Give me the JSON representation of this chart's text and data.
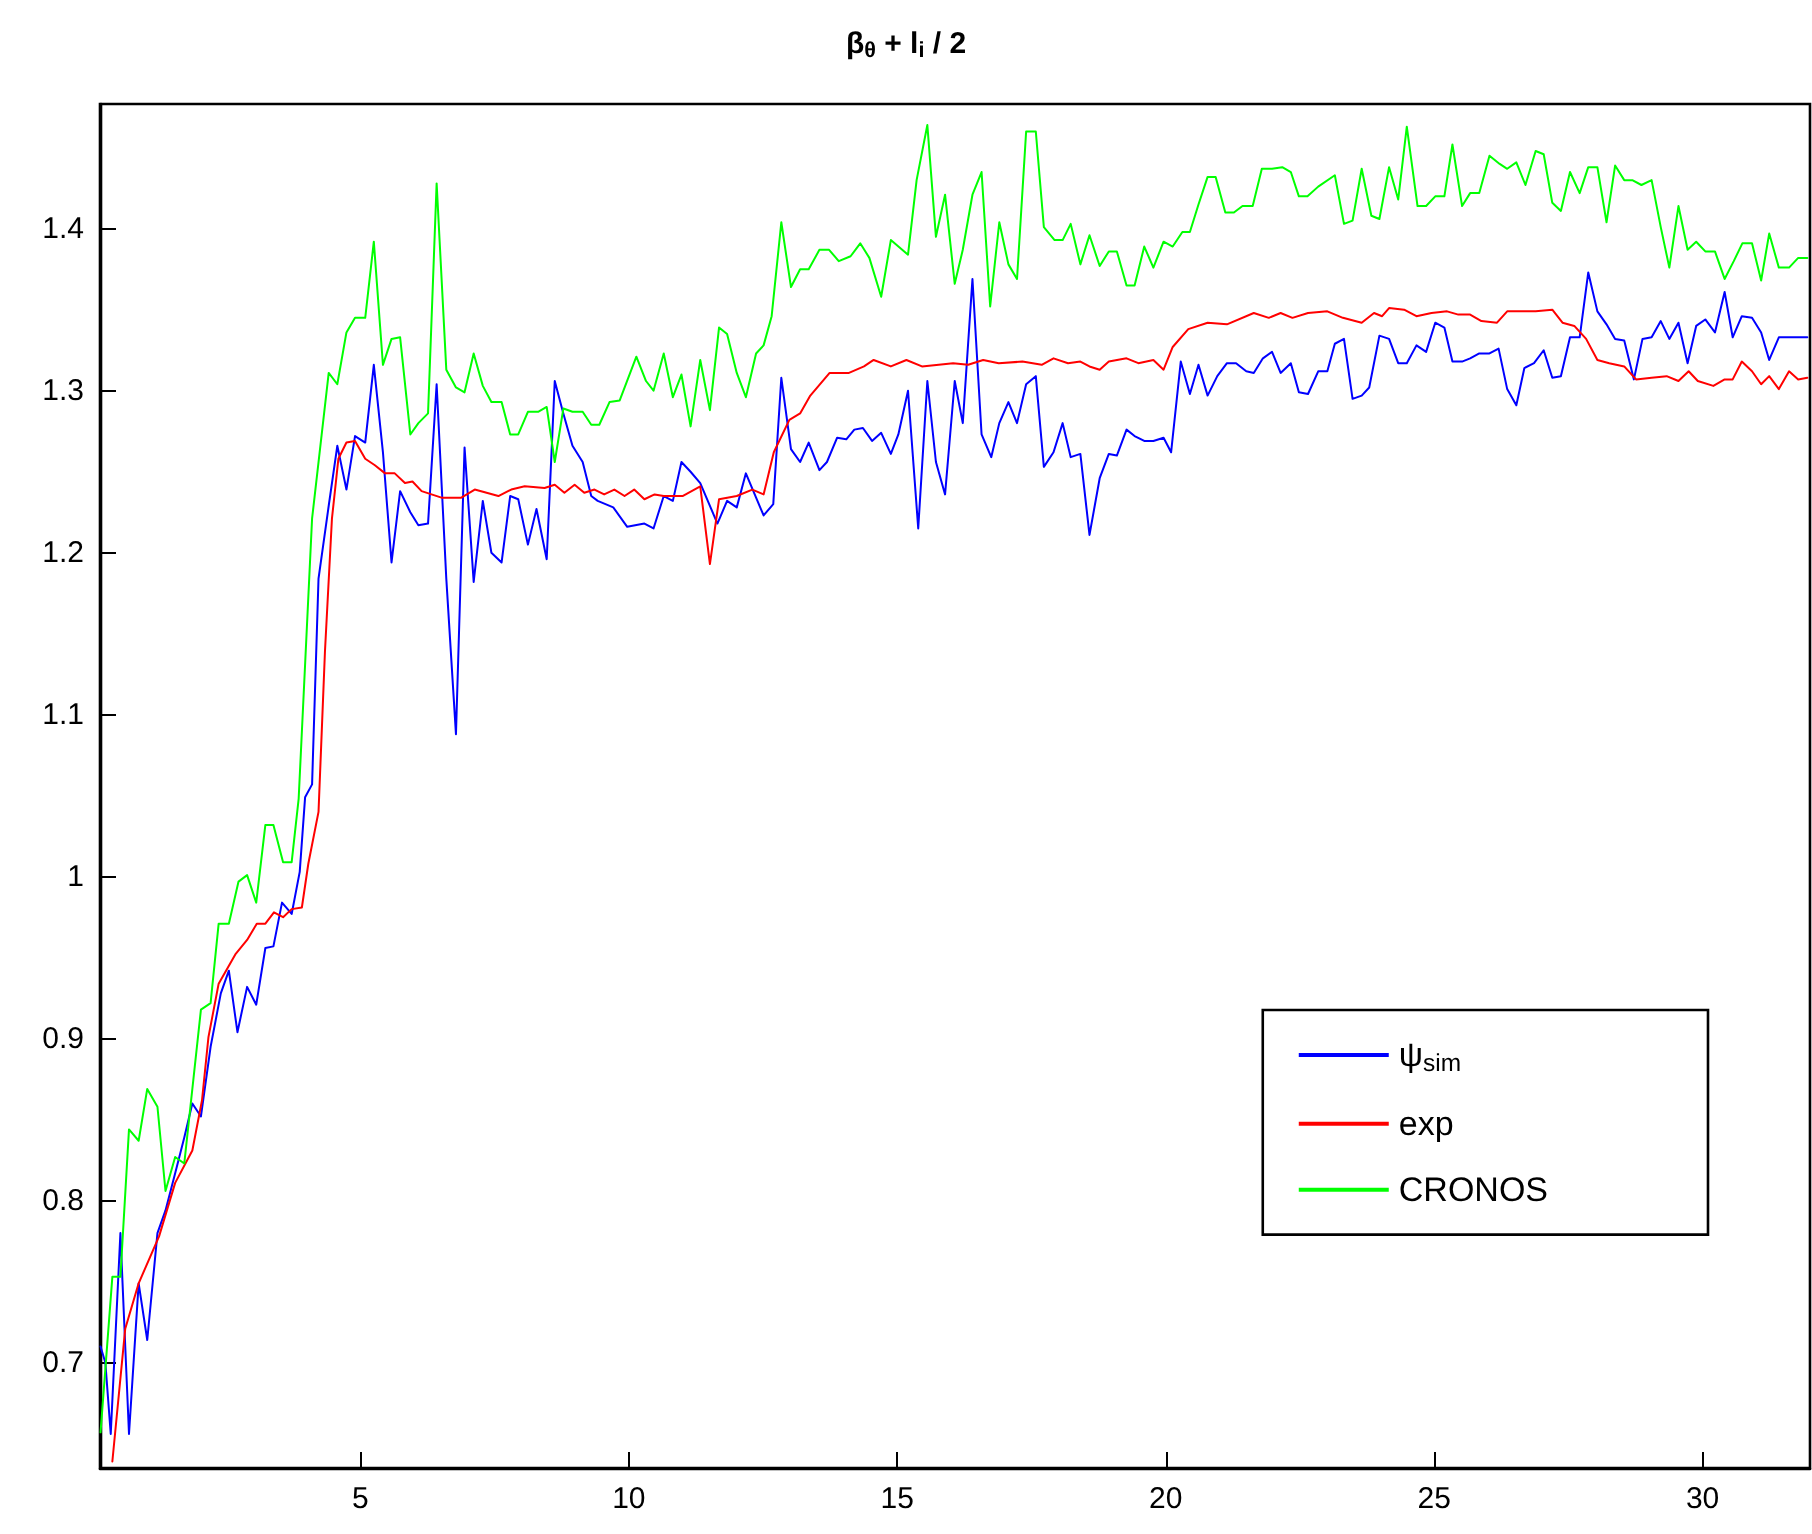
{
  "chart_data": {
    "type": "line",
    "title": "β$_{θ}$ + l$_{i}$ / 2",
    "xlim": [
      0.15,
      32
    ],
    "xticks": [
      5,
      10,
      15,
      20,
      25,
      30
    ],
    "ylim": [
      0.635,
      1.477
    ],
    "yticks": [
      0.7,
      0.8,
      0.9,
      1,
      1.1,
      1.2,
      1.3,
      1.4
    ],
    "grid": false,
    "legend": "right",
    "marker": "none",
    "line_style": "solid",
    "series": [
      {
        "name": "ψ$_{sim}$",
        "color": "#0000ff",
        "x": [
          0.16,
          0.25,
          0.35,
          0.53,
          0.69,
          0.87,
          1.03,
          1.22,
          1.37,
          1.55,
          1.72,
          1.87,
          2.03,
          2.21,
          2.4,
          2.55,
          2.71,
          2.89,
          3.06,
          3.23,
          3.38,
          3.54,
          3.72,
          3.87,
          3.97,
          4.1,
          4.22,
          4.41,
          4.57,
          4.74,
          4.9,
          5.09,
          5.25,
          5.42,
          5.58,
          5.74,
          5.93,
          6.08,
          6.26,
          6.42,
          6.6,
          6.78,
          6.94,
          7.11,
          7.28,
          7.44,
          7.63,
          7.79,
          7.94,
          8.12,
          8.28,
          8.47,
          8.62,
          8.78,
          8.95,
          9.14,
          9.3,
          9.42,
          9.71,
          9.97,
          10.29,
          10.46,
          10.65,
          10.82,
          10.98,
          11.15,
          11.33,
          11.65,
          11.83,
          12.01,
          12.18,
          12.51,
          12.69,
          12.84,
          13.02,
          13.19,
          13.35,
          13.55,
          13.69,
          13.88,
          14.05,
          14.2,
          14.36,
          14.53,
          14.7,
          14.88,
          15.02,
          15.2,
          15.39,
          15.56,
          15.72,
          15.89,
          16.07,
          16.22,
          16.4,
          16.57,
          16.75,
          16.9,
          17.07,
          17.23,
          17.4,
          17.58,
          17.73,
          17.91,
          18.08,
          18.23,
          18.41,
          18.58,
          18.77,
          18.94,
          19.09,
          19.27,
          19.42,
          19.6,
          19.77,
          19.96,
          20.1,
          20.28,
          20.45,
          20.61,
          20.78,
          20.96,
          21.14,
          21.31,
          21.5,
          21.64,
          21.81,
          21.98,
          22.14,
          22.33,
          22.48,
          22.65,
          22.84,
          23.01,
          23.15,
          23.32,
          23.48,
          23.65,
          23.79,
          23.98,
          24.16,
          24.33,
          24.49,
          24.67,
          24.85,
          25.02,
          25.19,
          25.34,
          25.52,
          25.67,
          25.84,
          26.03,
          26.2,
          26.36,
          26.53,
          26.68,
          26.86,
          27.04,
          27.2,
          27.36,
          27.53,
          27.71,
          27.87,
          28.04,
          28.21,
          28.37,
          28.54,
          28.72,
          28.88,
          29.05,
          29.22,
          29.38,
          29.55,
          29.72,
          29.88,
          30.05,
          30.23,
          30.41,
          30.56,
          30.73,
          30.92,
          31.09,
          31.24,
          31.42,
          31.95
        ],
        "values": [
          0.71,
          0.7,
          0.656,
          0.78,
          0.656,
          0.749,
          0.714,
          0.78,
          0.794,
          0.817,
          0.839,
          0.86,
          0.852,
          0.895,
          0.928,
          0.942,
          0.904,
          0.932,
          0.921,
          0.956,
          0.957,
          0.984,
          0.977,
          1.003,
          1.049,
          1.057,
          1.184,
          1.229,
          1.266,
          1.239,
          1.272,
          1.268,
          1.316,
          1.262,
          1.194,
          1.238,
          1.225,
          1.217,
          1.218,
          1.304,
          1.184,
          1.088,
          1.265,
          1.182,
          1.232,
          1.2,
          1.194,
          1.235,
          1.233,
          1.205,
          1.227,
          1.196,
          1.306,
          1.286,
          1.266,
          1.256,
          1.235,
          1.232,
          1.228,
          1.216,
          1.218,
          1.215,
          1.235,
          1.232,
          1.256,
          1.25,
          1.243,
          1.218,
          1.232,
          1.228,
          1.249,
          1.223,
          1.23,
          1.308,
          1.264,
          1.256,
          1.268,
          1.251,
          1.256,
          1.271,
          1.27,
          1.276,
          1.277,
          1.269,
          1.274,
          1.261,
          1.273,
          1.3,
          1.215,
          1.306,
          1.256,
          1.236,
          1.306,
          1.28,
          1.369,
          1.273,
          1.259,
          1.28,
          1.293,
          1.28,
          1.304,
          1.309,
          1.253,
          1.262,
          1.28,
          1.259,
          1.261,
          1.211,
          1.246,
          1.261,
          1.26,
          1.276,
          1.272,
          1.269,
          1.269,
          1.271,
          1.262,
          1.318,
          1.298,
          1.316,
          1.297,
          1.309,
          1.317,
          1.317,
          1.312,
          1.311,
          1.32,
          1.324,
          1.311,
          1.317,
          1.299,
          1.298,
          1.312,
          1.312,
          1.329,
          1.332,
          1.295,
          1.297,
          1.302,
          1.334,
          1.332,
          1.317,
          1.317,
          1.328,
          1.324,
          1.342,
          1.339,
          1.318,
          1.318,
          1.32,
          1.323,
          1.323,
          1.326,
          1.301,
          1.291,
          1.314,
          1.317,
          1.325,
          1.308,
          1.309,
          1.333,
          1.333,
          1.373,
          1.349,
          1.341,
          1.332,
          1.331,
          1.307,
          1.332,
          1.333,
          1.343,
          1.332,
          1.342,
          1.317,
          1.34,
          1.344,
          1.336,
          1.361,
          1.333,
          1.346,
          1.345,
          1.336,
          1.319,
          1.333,
          1.333
        ]
      },
      {
        "name": "exp",
        "color": "#ff0000",
        "x": [
          0.38,
          0.62,
          0.87,
          1.25,
          1.55,
          1.87,
          2.05,
          2.17,
          2.36,
          2.67,
          2.89,
          3.07,
          3.23,
          3.39,
          3.56,
          3.72,
          3.91,
          4.03,
          4.22,
          4.34,
          4.47,
          4.59,
          4.74,
          4.9,
          5.09,
          5.27,
          5.46,
          5.64,
          5.83,
          5.97,
          6.14,
          6.51,
          6.88,
          7.13,
          7.57,
          7.81,
          8.06,
          8.43,
          8.62,
          8.8,
          8.99,
          9.17,
          9.36,
          9.54,
          9.73,
          9.92,
          10.1,
          10.29,
          10.48,
          10.65,
          11,
          11.33,
          11.51,
          11.68,
          12.01,
          12.3,
          12.51,
          12.7,
          12.99,
          13.19,
          13.38,
          13.74,
          14.1,
          14.38,
          14.56,
          14.88,
          15.17,
          15.46,
          16.04,
          16.32,
          16.6,
          16.89,
          17.33,
          17.69,
          17.91,
          18.18,
          18.41,
          18.58,
          18.77,
          18.94,
          19.27,
          19.49,
          19.77,
          19.96,
          20.13,
          20.42,
          20.78,
          21.14,
          21.64,
          21.92,
          22.14,
          22.36,
          22.65,
          23.01,
          23.3,
          23.65,
          23.88,
          24.03,
          24.16,
          24.44,
          24.67,
          24.95,
          25.24,
          25.45,
          25.67,
          25.88,
          26.17,
          26.36,
          26.68,
          26.89,
          27.2,
          27.39,
          27.61,
          27.83,
          28.04,
          28.26,
          28.54,
          28.76,
          29.05,
          29.33,
          29.55,
          29.74,
          29.91,
          30.2,
          30.41,
          30.56,
          30.73,
          30.92,
          31.09,
          31.24,
          31.42,
          31.61,
          31.78,
          31.95
        ],
        "values": [
          0.639,
          0.721,
          0.749,
          0.778,
          0.811,
          0.831,
          0.862,
          0.901,
          0.934,
          0.952,
          0.961,
          0.971,
          0.971,
          0.978,
          0.975,
          0.98,
          0.981,
          1.008,
          1.04,
          1.139,
          1.221,
          1.258,
          1.268,
          1.269,
          1.258,
          1.254,
          1.249,
          1.249,
          1.243,
          1.244,
          1.238,
          1.234,
          1.234,
          1.239,
          1.235,
          1.239,
          1.241,
          1.24,
          1.242,
          1.237,
          1.242,
          1.237,
          1.239,
          1.236,
          1.239,
          1.235,
          1.239,
          1.233,
          1.236,
          1.235,
          1.235,
          1.241,
          1.193,
          1.233,
          1.235,
          1.239,
          1.236,
          1.262,
          1.282,
          1.286,
          1.297,
          1.311,
          1.311,
          1.315,
          1.319,
          1.315,
          1.319,
          1.315,
          1.317,
          1.316,
          1.319,
          1.317,
          1.318,
          1.316,
          1.32,
          1.317,
          1.318,
          1.315,
          1.313,
          1.318,
          1.32,
          1.317,
          1.319,
          1.313,
          1.327,
          1.338,
          1.342,
          1.341,
          1.348,
          1.345,
          1.348,
          1.345,
          1.348,
          1.349,
          1.345,
          1.342,
          1.348,
          1.346,
          1.351,
          1.35,
          1.346,
          1.348,
          1.349,
          1.347,
          1.347,
          1.343,
          1.342,
          1.349,
          1.349,
          1.349,
          1.35,
          1.342,
          1.34,
          1.332,
          1.319,
          1.317,
          1.315,
          1.307,
          1.308,
          1.309,
          1.306,
          1.312,
          1.306,
          1.303,
          1.307,
          1.307,
          1.318,
          1.312,
          1.304,
          1.309,
          1.301,
          1.312,
          1.307,
          1.308
        ]
      },
      {
        "name": "CRONOS",
        "color": "#00ff00",
        "x": [
          0.16,
          0.38,
          0.53,
          0.69,
          0.87,
          1.03,
          1.22,
          1.37,
          1.55,
          1.72,
          2.03,
          2.21,
          2.36,
          2.55,
          2.73,
          2.89,
          3.06,
          3.23,
          3.38,
          3.56,
          3.72,
          3.85,
          4.1,
          4.41,
          4.57,
          4.74,
          4.9,
          5.09,
          5.25,
          5.42,
          5.58,
          5.74,
          5.93,
          6.08,
          6.26,
          6.42,
          6.6,
          6.78,
          6.94,
          7.11,
          7.28,
          7.44,
          7.63,
          7.79,
          7.94,
          8.12,
          8.31,
          8.47,
          8.62,
          8.78,
          8.95,
          9.14,
          9.3,
          9.45,
          9.64,
          9.83,
          10.14,
          10.32,
          10.46,
          10.65,
          10.82,
          10.98,
          11.15,
          11.33,
          11.51,
          11.68,
          11.83,
          12.01,
          12.18,
          12.37,
          12.51,
          12.66,
          12.84,
          13.02,
          13.19,
          13.35,
          13.55,
          13.73,
          13.91,
          14.13,
          14.31,
          14.48,
          14.7,
          14.88,
          15.2,
          15.36,
          15.56,
          15.72,
          15.89,
          16.07,
          16.22,
          16.4,
          16.57,
          16.73,
          16.9,
          17.07,
          17.23,
          17.4,
          17.58,
          17.73,
          17.93,
          18.08,
          18.23,
          18.41,
          18.58,
          18.77,
          18.94,
          19.09,
          19.27,
          19.42,
          19.6,
          19.77,
          19.96,
          20.13,
          20.31,
          20.45,
          20.61,
          20.78,
          20.93,
          21.11,
          21.27,
          21.43,
          21.62,
          21.79,
          21.98,
          22.17,
          22.33,
          22.48,
          22.64,
          22.84,
          23.15,
          23.32,
          23.48,
          23.65,
          23.83,
          23.98,
          24.16,
          24.33,
          24.49,
          24.69,
          24.85,
          25.02,
          25.19,
          25.34,
          25.52,
          25.67,
          25.84,
          26.03,
          26.22,
          26.36,
          26.53,
          26.7,
          26.89,
          27.04,
          27.2,
          27.36,
          27.53,
          27.71,
          27.87,
          28.04,
          28.21,
          28.37,
          28.54,
          28.69,
          28.86,
          29.05,
          29.22,
          29.38,
          29.55,
          29.72,
          29.88,
          30.05,
          30.23,
          30.41,
          30.58,
          30.74,
          30.92,
          31.09,
          31.24,
          31.42,
          31.61,
          31.78,
          31.95
        ],
        "values": [
          0.657,
          0.753,
          0.753,
          0.844,
          0.837,
          0.869,
          0.858,
          0.806,
          0.827,
          0.823,
          0.918,
          0.922,
          0.971,
          0.971,
          0.997,
          1.001,
          0.984,
          1.032,
          1.032,
          1.009,
          1.009,
          1.048,
          1.221,
          1.311,
          1.304,
          1.336,
          1.345,
          1.345,
          1.392,
          1.316,
          1.332,
          1.333,
          1.273,
          1.28,
          1.286,
          1.428,
          1.313,
          1.302,
          1.299,
          1.323,
          1.303,
          1.293,
          1.293,
          1.273,
          1.273,
          1.287,
          1.287,
          1.29,
          1.256,
          1.289,
          1.287,
          1.287,
          1.279,
          1.279,
          1.293,
          1.294,
          1.321,
          1.306,
          1.3,
          1.323,
          1.296,
          1.31,
          1.278,
          1.319,
          1.288,
          1.339,
          1.335,
          1.311,
          1.296,
          1.323,
          1.328,
          1.346,
          1.404,
          1.364,
          1.375,
          1.375,
          1.387,
          1.387,
          1.38,
          1.383,
          1.391,
          1.382,
          1.358,
          1.393,
          1.384,
          1.43,
          1.464,
          1.395,
          1.421,
          1.366,
          1.387,
          1.421,
          1.435,
          1.352,
          1.404,
          1.378,
          1.369,
          1.46,
          1.46,
          1.401,
          1.393,
          1.393,
          1.403,
          1.378,
          1.396,
          1.377,
          1.386,
          1.386,
          1.365,
          1.365,
          1.389,
          1.376,
          1.392,
          1.389,
          1.398,
          1.398,
          1.415,
          1.432,
          1.432,
          1.41,
          1.41,
          1.414,
          1.414,
          1.437,
          1.437,
          1.438,
          1.435,
          1.42,
          1.42,
          1.426,
          1.433,
          1.403,
          1.405,
          1.437,
          1.408,
          1.406,
          1.438,
          1.418,
          1.463,
          1.414,
          1.414,
          1.42,
          1.42,
          1.452,
          1.414,
          1.422,
          1.422,
          1.445,
          1.44,
          1.437,
          1.441,
          1.427,
          1.448,
          1.446,
          1.416,
          1.411,
          1.435,
          1.422,
          1.438,
          1.438,
          1.404,
          1.439,
          1.43,
          1.43,
          1.427,
          1.43,
          1.401,
          1.376,
          1.414,
          1.387,
          1.392,
          1.386,
          1.386,
          1.369,
          1.38,
          1.391,
          1.391,
          1.368,
          1.397,
          1.376,
          1.376,
          1.382,
          1.382
        ]
      }
    ]
  }
}
